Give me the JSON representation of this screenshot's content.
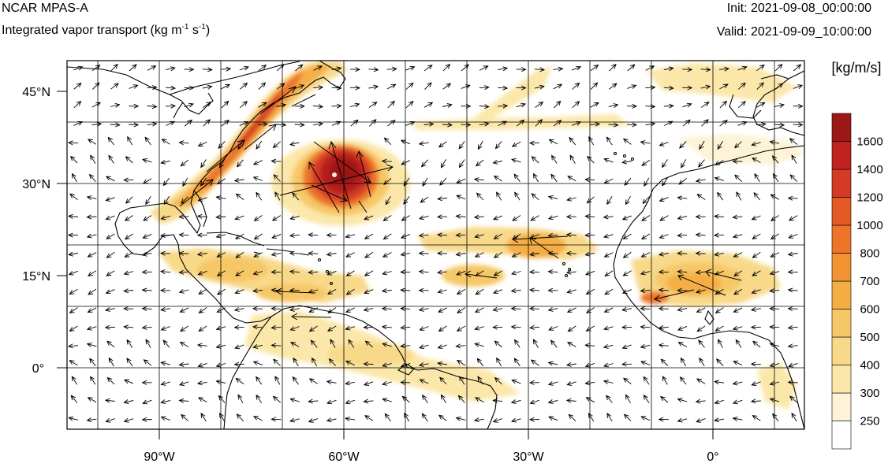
{
  "header": {
    "model": "NCAR MPAS-A",
    "field_text": "Integrated vapor transport (kg m",
    "field_exp1": "-1",
    "field_mid": " s",
    "field_exp2": "-1",
    "field_close": ")",
    "init": "Init: 2021-09-08_00:00:00",
    "valid": "Valid: 2021-09-09_10:00:00"
  },
  "map": {
    "lon_ticks": [
      "90°W",
      "60°W",
      "30°W",
      "0°"
    ],
    "lat_ticks": [
      "45°N",
      "30°N",
      "15°N",
      "0°"
    ],
    "lon_tick_values": [
      -90,
      -60,
      -30,
      0
    ],
    "lat_tick_values": [
      45,
      30,
      15,
      0
    ],
    "lon_range": [
      -105,
      15
    ],
    "lat_range": [
      -10,
      50
    ],
    "grid_lon": [
      -90,
      -80,
      -70,
      -60,
      -50,
      -40,
      -30,
      -20,
      -10,
      0,
      10
    ],
    "grid_lat": [
      0,
      10,
      20,
      30,
      40
    ]
  },
  "colorbar": {
    "units": "[kg/m/s]",
    "levels": [
      "250",
      "300",
      "400",
      "500",
      "600",
      "700",
      "800",
      "1000",
      "1200",
      "1400",
      "1600"
    ],
    "colors": [
      "#ffffff",
      "#fdf3d6",
      "#fbe7a9",
      "#f8d98a",
      "#f6c766",
      "#f4ae45",
      "#f19233",
      "#ec7529",
      "#e45a24",
      "#d43b25",
      "#c0231f",
      "#9c1918"
    ]
  },
  "colors": {
    "coast": "#000000",
    "grid": "#000000",
    "vectors": "#000000"
  }
}
